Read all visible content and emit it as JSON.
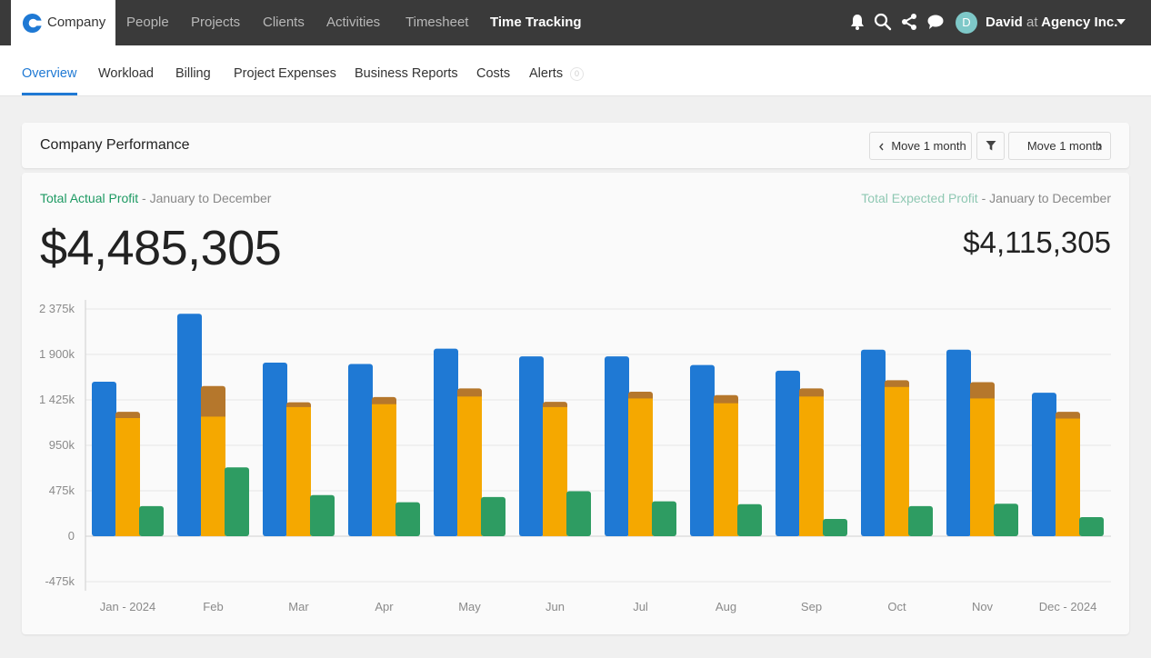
{
  "topnav": {
    "brand": "Company",
    "items": [
      "People",
      "Projects",
      "Clients",
      "Activities",
      "Timesheet",
      "Time Tracking"
    ],
    "active": "Time Tracking",
    "avatar_initial": "D",
    "user_name": "David",
    "user_at": "at",
    "user_org": "Agency Inc."
  },
  "subnav": {
    "items": [
      "Overview",
      "Workload",
      "Billing",
      "Project Expenses",
      "Business Reports",
      "Costs",
      "Alerts"
    ],
    "active": "Overview",
    "alerts_badge": "0"
  },
  "panel": {
    "title": "Company Performance",
    "prev_label": "Move 1 month",
    "next_label": "Move 1 month"
  },
  "summary": {
    "actual_label": "Total Actual Profit",
    "actual_range": " - January to December",
    "actual_value": "$4,485,305",
    "expected_label": "Total Expected Profit",
    "expected_range": " - January to December",
    "expected_value": "$4,115,305"
  },
  "colors": {
    "blue": "#1f79d4",
    "orange": "#f5a800",
    "brown": "#b5772c",
    "green": "#2e9c62"
  },
  "chart_data": {
    "type": "bar",
    "categories": [
      "Jan - 2024",
      "Feb",
      "Mar",
      "Apr",
      "May",
      "Jun",
      "Jul",
      "Aug",
      "Sep",
      "Oct",
      "Nov",
      "Dec - 2024"
    ],
    "series": [
      {
        "values": [
          1615,
          2325,
          1815,
          1800,
          1960,
          1880,
          1880,
          1790,
          1730,
          1950,
          1950,
          1500
        ]
      },
      {
        "values": [
          1235,
          1250,
          1350,
          1380,
          1460,
          1350,
          1440,
          1390,
          1460,
          1560,
          1440,
          1230
        ]
      },
      {
        "values": [
          1300,
          1570,
          1400,
          1455,
          1545,
          1405,
          1510,
          1475,
          1545,
          1630,
          1610,
          1300
        ]
      },
      {
        "values": [
          315,
          720,
          430,
          355,
          410,
          470,
          365,
          335,
          180,
          315,
          340,
          200
        ]
      }
    ],
    "yticks": [
      "2 375k",
      "1 900k",
      "1 425k",
      "950k",
      "475k",
      "0",
      "-475k"
    ],
    "ylim": [
      -475,
      2375
    ],
    "grid": true
  }
}
